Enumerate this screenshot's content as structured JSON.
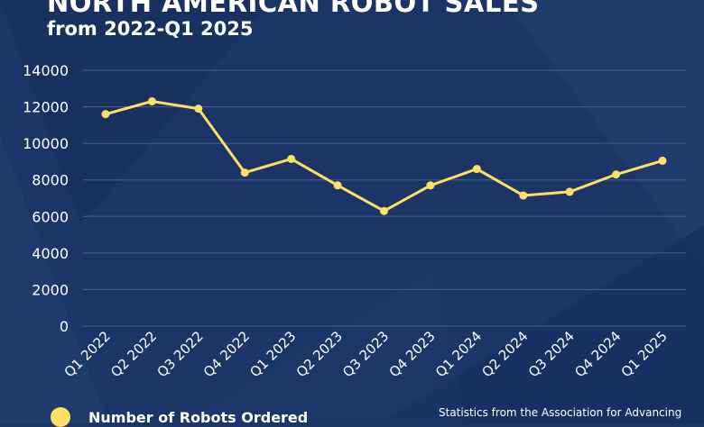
{
  "title": "NORTH AMERICAN ROBOT SALES",
  "subtitle": "from 2022-Q1 2025",
  "source_note": "Statistics from the Association for Advancing",
  "colors": {
    "background": "#1b3566",
    "line": "#ffe066",
    "grid": "#4a6290",
    "text": "#ffffff"
  },
  "chart_data": {
    "type": "line",
    "title": "NORTH AMERICAN ROBOT SALES",
    "subtitle": "from 2022-Q1 2025",
    "categories": [
      "Q1 2022",
      "Q2 2022",
      "Q3 2022",
      "Q4 2022",
      "Q1 2023",
      "Q2 2023",
      "Q3 2023",
      "Q4 2023",
      "Q1 2024",
      "Q2 2024",
      "Q3 2024",
      "Q4 2024",
      "Q1 2025"
    ],
    "series": [
      {
        "name": "Number of Robots Ordered",
        "values": [
          11600,
          12300,
          11900,
          8400,
          9150,
          7700,
          6300,
          7700,
          8600,
          7150,
          7350,
          8300,
          9050
        ]
      }
    ],
    "ylim": [
      0,
      14000
    ],
    "yticks": [
      "0",
      "2000",
      "4000",
      "6000",
      "8000",
      "10000",
      "12000",
      "14000"
    ],
    "xlabel": "",
    "ylabel": "",
    "grid": true,
    "legend": "bottom-left"
  }
}
